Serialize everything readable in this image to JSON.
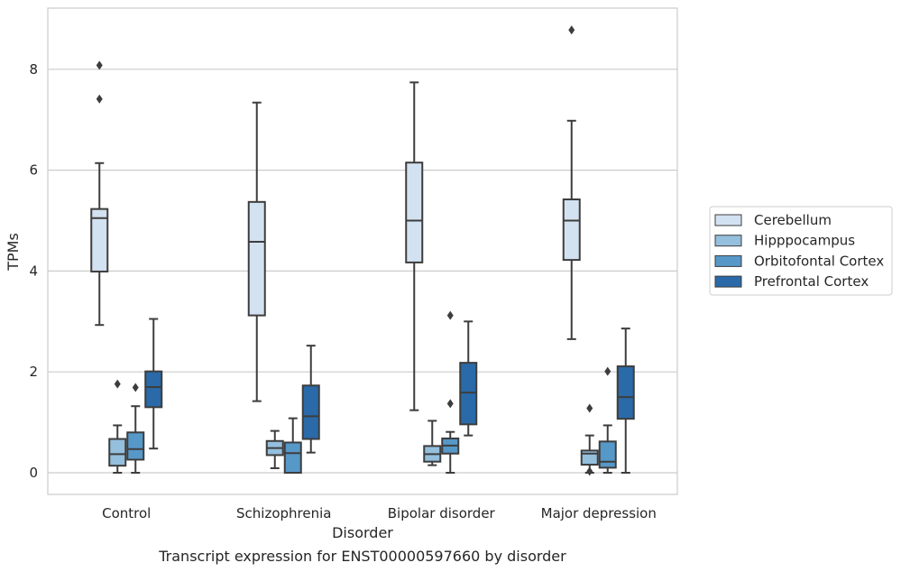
{
  "chart_data": {
    "type": "boxplot",
    "title": "",
    "caption": "Transcript expression for ENST00000597660 by disorder",
    "xlabel": "Disorder",
    "ylabel": "TPMs",
    "ylim": [
      -0.42,
      9.22
    ],
    "yticks": [
      0,
      2,
      4,
      6,
      8
    ],
    "grid": "horizontal",
    "legend_position": "right",
    "categories": [
      "Control",
      "Schizophrenia",
      "Bipolar disorder",
      "Major depression"
    ],
    "series": [
      {
        "name": "Cerebellum",
        "color": "#d3e2f1",
        "boxes": [
          {
            "whisker_low": 2.93,
            "q1": 3.99,
            "median": 5.05,
            "q3": 5.23,
            "whisker_high": 6.14,
            "outliers": [
              7.41,
              8.08
            ]
          },
          {
            "whisker_low": 1.42,
            "q1": 3.12,
            "median": 4.58,
            "q3": 5.37,
            "whisker_high": 7.34,
            "outliers": []
          },
          {
            "whisker_low": 1.24,
            "q1": 4.17,
            "median": 5.0,
            "q3": 6.15,
            "whisker_high": 7.74,
            "outliers": []
          },
          {
            "whisker_low": 2.65,
            "q1": 4.22,
            "median": 5.0,
            "q3": 5.42,
            "whisker_high": 6.98,
            "outliers": [
              8.78
            ]
          }
        ]
      },
      {
        "name": "Hipppocampus",
        "color": "#94bfdd",
        "boxes": [
          {
            "whisker_low": 0.0,
            "q1": 0.14,
            "median": 0.37,
            "q3": 0.67,
            "whisker_high": 0.94,
            "outliers": [
              1.76
            ]
          },
          {
            "whisker_low": 0.09,
            "q1": 0.35,
            "median": 0.49,
            "q3": 0.63,
            "whisker_high": 0.83,
            "outliers": []
          },
          {
            "whisker_low": 0.15,
            "q1": 0.22,
            "median": 0.37,
            "q3": 0.53,
            "whisker_high": 1.03,
            "outliers": []
          },
          {
            "whisker_low": 0.0,
            "q1": 0.16,
            "median": 0.38,
            "q3": 0.44,
            "whisker_high": 0.74,
            "outliers": [
              1.28,
              0.03
            ]
          }
        ]
      },
      {
        "name": "Orbitofontal Cortex",
        "color": "#5698c8",
        "boxes": [
          {
            "whisker_low": 0.0,
            "q1": 0.26,
            "median": 0.47,
            "q3": 0.8,
            "whisker_high": 1.32,
            "outliers": [
              1.69
            ]
          },
          {
            "whisker_low": 0.0,
            "q1": 0.0,
            "median": 0.39,
            "q3": 0.6,
            "whisker_high": 1.08,
            "outliers": []
          },
          {
            "whisker_low": 0.0,
            "q1": 0.38,
            "median": 0.54,
            "q3": 0.68,
            "whisker_high": 0.81,
            "outliers": [
              1.37,
              3.12
            ]
          },
          {
            "whisker_low": 0.0,
            "q1": 0.1,
            "median": 0.22,
            "q3": 0.62,
            "whisker_high": 0.94,
            "outliers": [
              2.01
            ]
          }
        ]
      },
      {
        "name": "Prefrontal Cortex",
        "color": "#2a6aa8",
        "boxes": [
          {
            "whisker_low": 0.48,
            "q1": 1.3,
            "median": 1.7,
            "q3": 2.01,
            "whisker_high": 3.05,
            "outliers": []
          },
          {
            "whisker_low": 0.4,
            "q1": 0.67,
            "median": 1.12,
            "q3": 1.73,
            "whisker_high": 2.52,
            "outliers": []
          },
          {
            "whisker_low": 0.74,
            "q1": 0.96,
            "median": 1.59,
            "q3": 2.18,
            "whisker_high": 3.0,
            "outliers": []
          },
          {
            "whisker_low": 0.0,
            "q1": 1.07,
            "median": 1.5,
            "q3": 2.11,
            "whisker_high": 2.86,
            "outliers": []
          }
        ]
      }
    ]
  }
}
